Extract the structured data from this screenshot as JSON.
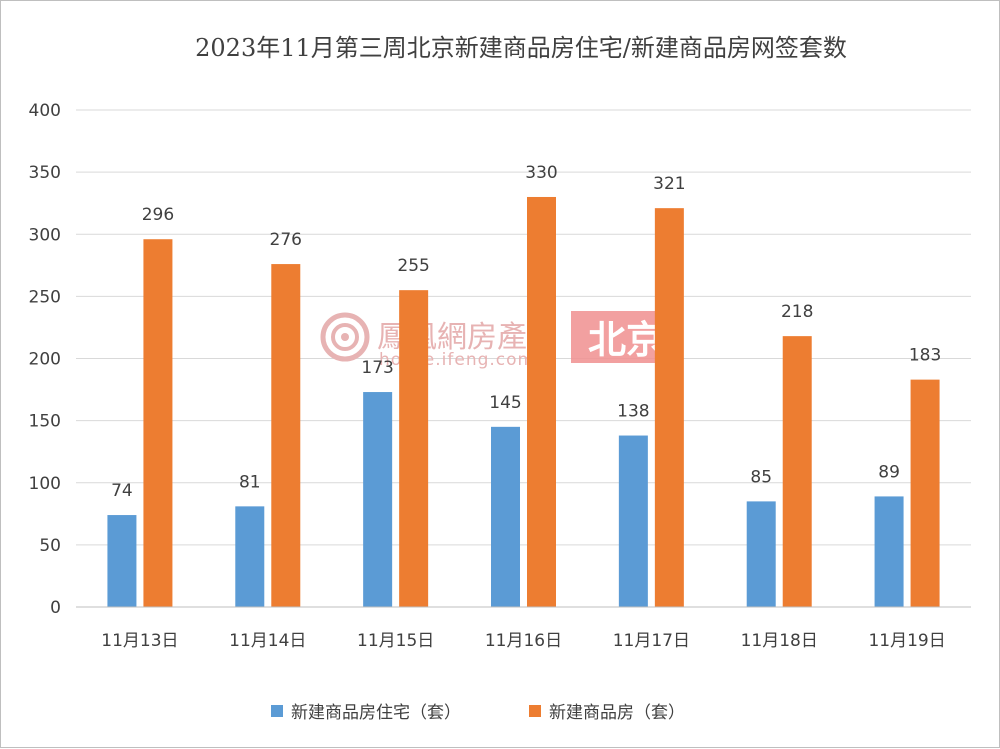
{
  "chart_data": {
    "type": "bar",
    "title": "2023年11月第三周北京新建商品房住宅/新建商品房网签套数",
    "categories": [
      "11月13日",
      "11月14日",
      "11月15日",
      "11月16日",
      "11月17日",
      "11月18日",
      "11月19日"
    ],
    "series": [
      {
        "name": "新建商品房住宅（套）",
        "values": [
          74,
          81,
          173,
          145,
          138,
          85,
          89
        ],
        "color": "#5b9bd5"
      },
      {
        "name": "新建商品房（套）",
        "values": [
          296,
          276,
          255,
          330,
          321,
          218,
          183
        ],
        "color": "#ed7d31"
      }
    ],
    "ylim": [
      0,
      400
    ],
    "yticks": [
      0,
      50,
      100,
      150,
      200,
      250,
      300,
      350,
      400
    ],
    "grid": true,
    "legend": "bottom"
  },
  "watermark": {
    "brand": "鳳凰網房產",
    "url": "house.ifeng.com",
    "city": "北京",
    "color": "#e7b3b3",
    "city_bg": "#f08f8f",
    "icon": "ifeng-logo-icon"
  }
}
